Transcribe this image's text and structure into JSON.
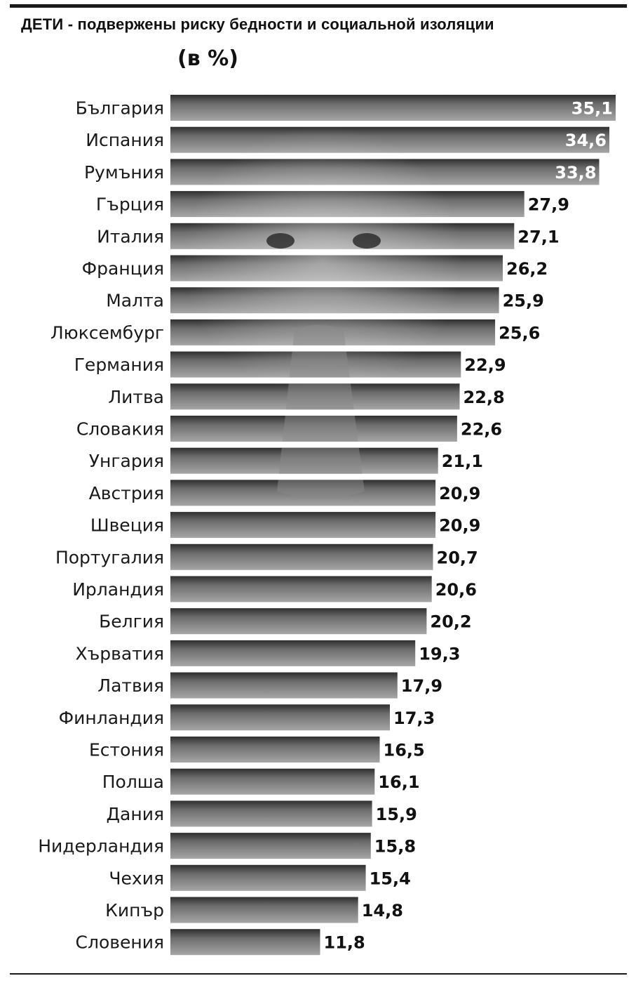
{
  "chart_data": {
    "type": "bar",
    "orientation": "horizontal",
    "title": "ДЕТИ - подвержены риску бедности и социальной изоляции",
    "subtitle": "(в %)",
    "xlabel": "",
    "ylabel": "",
    "xlim": [
      0,
      35.1
    ],
    "grid": false,
    "legend": "none",
    "background": "photo of a child, grayscale",
    "categories": [
      "България",
      "Испания",
      "Румъния",
      "Гърция",
      "Италия",
      "Франция",
      "Малта",
      "Люксембург",
      "Германия",
      "Литва",
      "Словакия",
      "Унгария",
      "Австрия",
      "Швеция",
      "Португалия",
      "Ирландия",
      "Белгия",
      "Хърватия",
      "Латвия",
      "Финландия",
      "Естония",
      "Полша",
      "Дания",
      "Нидерландия",
      "Чехия",
      "Кипър",
      "Словения"
    ],
    "values": [
      35.1,
      34.6,
      33.8,
      27.9,
      27.1,
      26.2,
      25.9,
      25.6,
      22.9,
      22.8,
      22.6,
      21.1,
      20.9,
      20.9,
      20.7,
      20.6,
      20.2,
      19.3,
      17.9,
      17.3,
      16.5,
      16.1,
      15.9,
      15.8,
      15.4,
      14.8,
      11.8
    ],
    "value_labels": [
      "35,1",
      "34,6",
      "33,8",
      "27,9",
      "27,1",
      "26,2",
      "25,9",
      "25,6",
      "22,9",
      "22,8",
      "22,6",
      "21,1",
      "20,9",
      "20,9",
      "20,7",
      "20,6",
      "20,2",
      "19,3",
      "17,9",
      "17,3",
      "16,5",
      "16,1",
      "15,9",
      "15,8",
      "15,4",
      "14,8",
      "11,8"
    ],
    "colors": {
      "bar_dark": "#2e2e2e",
      "bar_mid": "#6d6d6d",
      "bar_light": "#a6a6a6",
      "label_dark": "#111111",
      "label_on_bar": "#ffffff"
    }
  }
}
